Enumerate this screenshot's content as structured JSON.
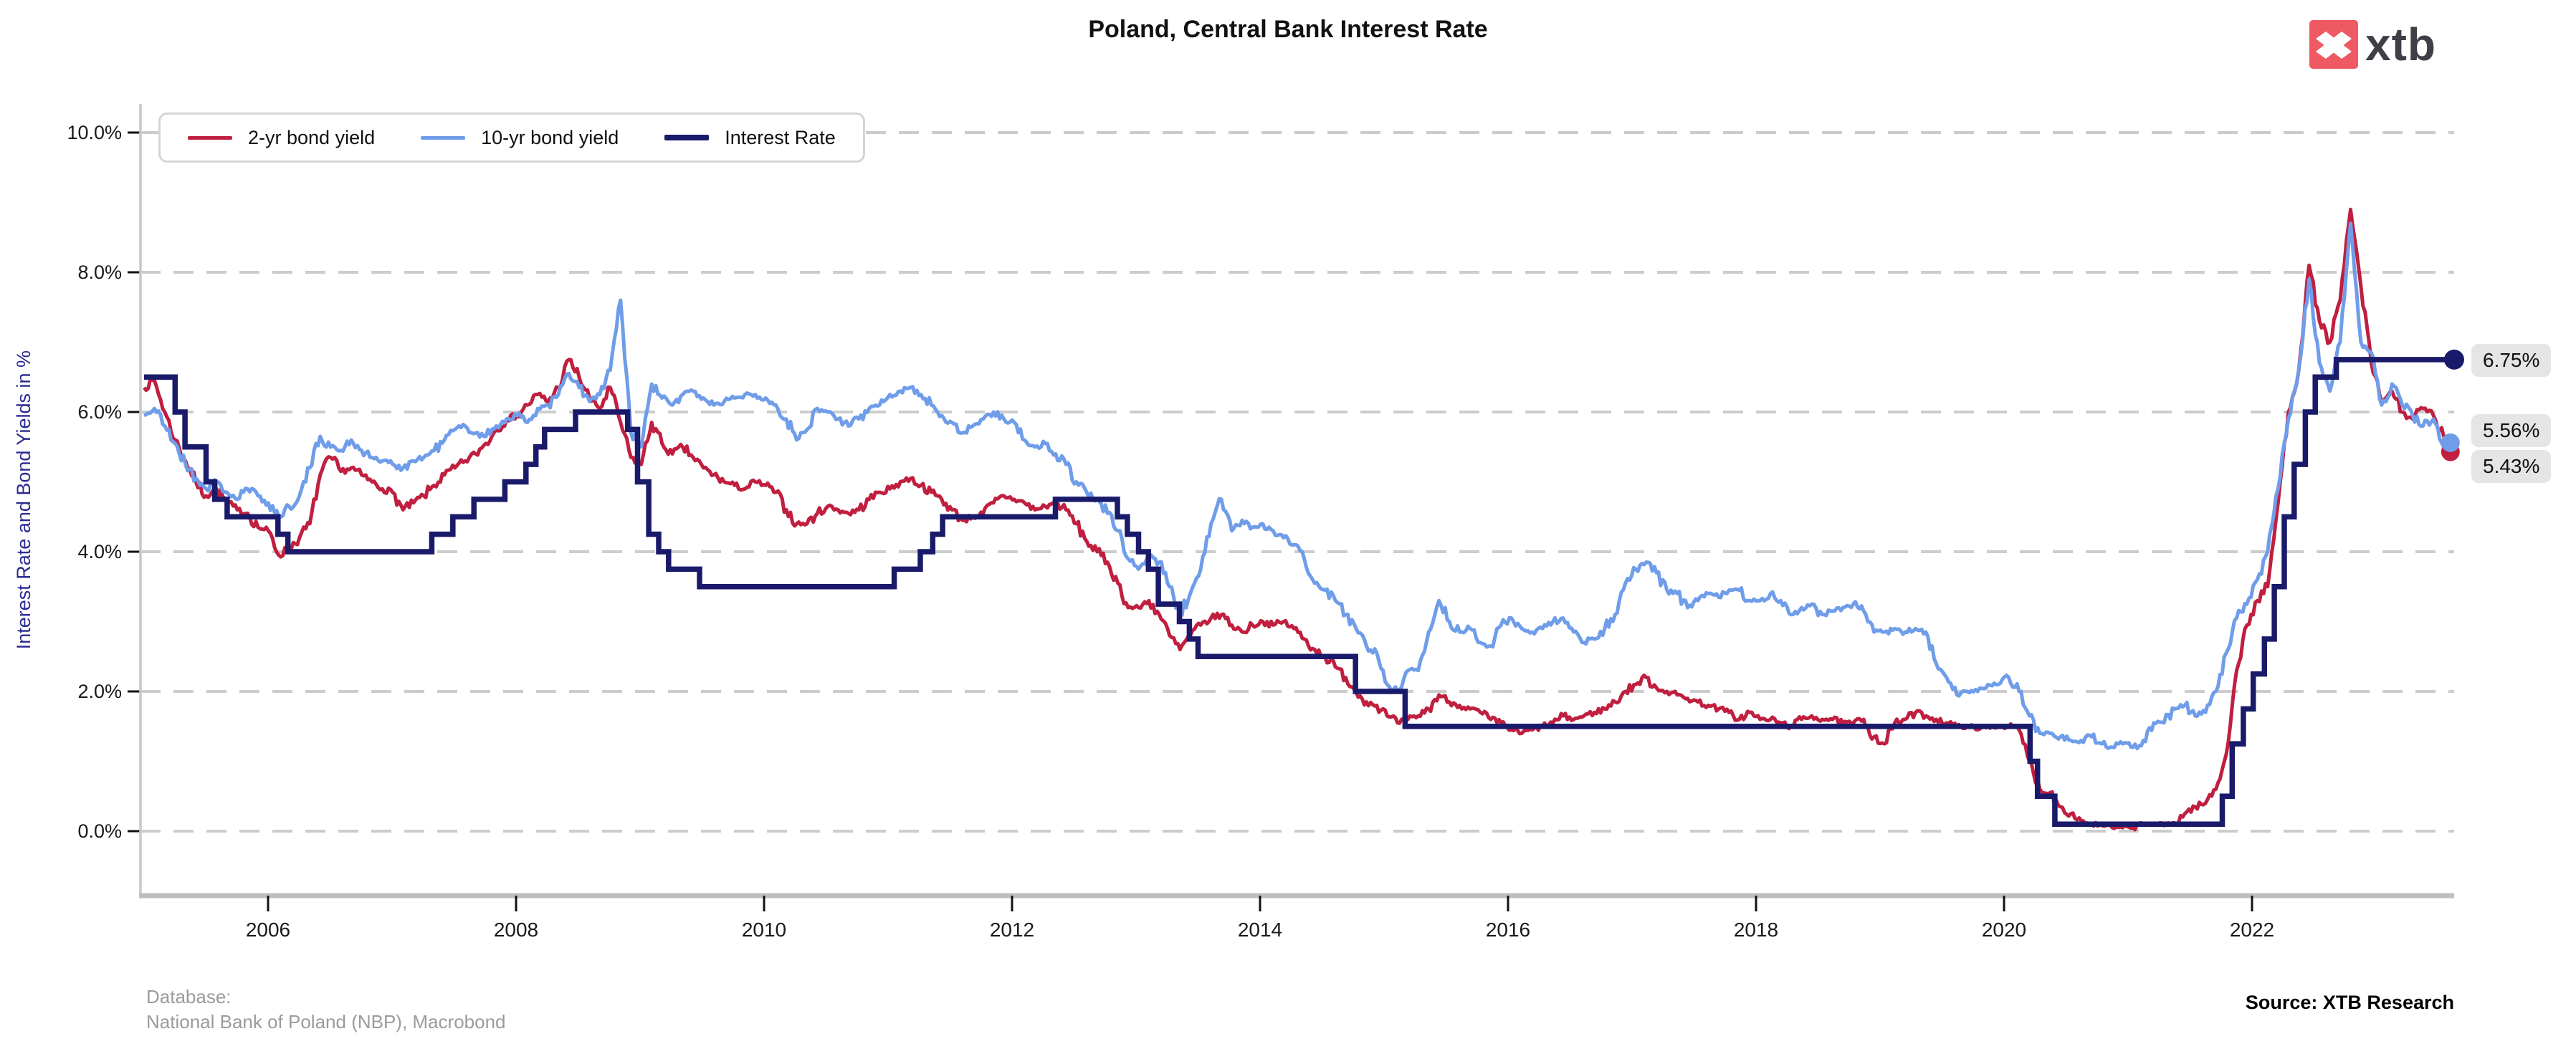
{
  "logo": {
    "text": "xtb",
    "square_color": "#EF5964",
    "text_color": "#3F3F48"
  },
  "footer": {
    "database_label": "Database:",
    "database_value": "National Bank of Poland (NBP), Macrobond",
    "source": "Source: XTB Research"
  },
  "colors": {
    "two_year": "#C01F3F",
    "ten_year": "#6F9DE9",
    "interest_rate": "#1A1A6B",
    "gridline": "#CCCCCC",
    "left_spine": "#C9C9C9",
    "bottom_spine": "#BEBEBE",
    "axis_title": "#2A2A93",
    "end_label_bg": "#E5E5E5"
  },
  "chart_data": {
    "type": "line",
    "title": "Poland, Central Bank Interest Rate",
    "xlabel": "",
    "ylabel": "Interest Rate and Bond Yields in %",
    "ylim": [
      0,
      10
    ],
    "x_range_years": [
      2005,
      2023.63
    ],
    "grid": "horizontal dashed",
    "legend_position": "top-left",
    "x_ticks": [
      "2006",
      "2008",
      "2010",
      "2012",
      "2014",
      "2016",
      "2018",
      "2020",
      "2022"
    ],
    "x_tick_years": [
      2006,
      2008,
      2010,
      2012,
      2014,
      2016,
      2018,
      2020,
      2022
    ],
    "y_ticks": {
      "values": [
        0,
        2,
        4,
        6,
        8,
        10
      ],
      "labels": [
        "0.0%",
        "2.0%",
        "4.0%",
        "6.0%",
        "8.0%",
        "10.0%"
      ]
    },
    "series": [
      {
        "name": "2-yr bond yield",
        "type": "line",
        "color": "#C01F3F",
        "interval": "monthly",
        "start": "2005-01",
        "end": "2023-08",
        "end_label": "5.43%",
        "values": [
          6.35,
          6.45,
          6.0,
          5.6,
          5.3,
          5.0,
          4.8,
          4.9,
          4.7,
          4.6,
          4.55,
          4.35,
          4.3,
          3.95,
          4.05,
          4.2,
          4.4,
          5.1,
          5.35,
          5.15,
          5.2,
          5.1,
          5.0,
          4.9,
          4.85,
          4.6,
          4.7,
          4.8,
          4.95,
          5.1,
          5.2,
          5.3,
          5.4,
          5.55,
          5.75,
          5.9,
          5.95,
          6.1,
          6.25,
          6.15,
          6.35,
          6.75,
          6.5,
          6.2,
          6.05,
          6.35,
          5.85,
          5.35,
          5.25,
          5.85,
          5.55,
          5.4,
          5.5,
          5.35,
          5.2,
          5.1,
          5.0,
          4.95,
          4.9,
          5.0,
          4.95,
          4.85,
          4.6,
          4.4,
          4.4,
          4.55,
          4.65,
          4.6,
          4.55,
          4.6,
          4.75,
          4.85,
          4.9,
          5.0,
          5.05,
          4.95,
          4.85,
          4.75,
          4.6,
          4.45,
          4.5,
          4.55,
          4.7,
          4.8,
          4.75,
          4.7,
          4.6,
          4.65,
          4.7,
          4.6,
          4.4,
          4.15,
          4.0,
          3.85,
          3.55,
          3.2,
          3.2,
          3.3,
          3.1,
          2.8,
          2.6,
          2.8,
          2.95,
          3.05,
          3.1,
          2.95,
          2.85,
          2.95,
          3.0,
          2.95,
          3.0,
          2.9,
          2.75,
          2.6,
          2.5,
          2.35,
          2.2,
          2.0,
          1.85,
          1.8,
          1.65,
          1.55,
          1.6,
          1.65,
          1.75,
          1.95,
          1.85,
          1.8,
          1.75,
          1.7,
          1.6,
          1.55,
          1.45,
          1.4,
          1.45,
          1.5,
          1.55,
          1.65,
          1.6,
          1.65,
          1.7,
          1.75,
          1.85,
          2.0,
          2.1,
          2.2,
          2.05,
          2.0,
          1.95,
          1.9,
          1.85,
          1.8,
          1.75,
          1.7,
          1.6,
          1.7,
          1.6,
          1.6,
          1.55,
          1.5,
          1.6,
          1.65,
          1.6,
          1.6,
          1.55,
          1.55,
          1.6,
          1.35,
          1.25,
          1.55,
          1.6,
          1.7,
          1.65,
          1.6,
          1.55,
          1.5,
          1.5,
          1.45,
          1.5,
          1.5,
          1.5,
          1.45,
          1.0,
          0.6,
          0.55,
          0.35,
          0.25,
          0.15,
          0.1,
          0.08,
          0.05,
          0.05,
          0.05,
          0.1,
          0.1,
          0.08,
          0.12,
          0.25,
          0.35,
          0.4,
          0.6,
          1.1,
          2.3,
          2.95,
          3.3,
          3.5,
          4.7,
          6.0,
          6.6,
          8.1,
          7.3,
          7.0,
          7.6,
          8.9,
          7.8,
          6.7,
          6.15,
          6.3,
          6.0,
          5.9,
          6.05,
          5.95,
          5.65,
          5.43
        ]
      },
      {
        "name": "10-yr bond yield",
        "type": "line",
        "color": "#6F9DE9",
        "interval": "monthly",
        "start": "2005-01",
        "end": "2023-08",
        "end_label": "5.56%",
        "values": [
          5.95,
          6.05,
          5.8,
          5.55,
          5.25,
          5.05,
          4.9,
          5.0,
          4.85,
          4.75,
          4.9,
          4.8,
          4.7,
          4.5,
          4.65,
          4.8,
          5.2,
          5.65,
          5.5,
          5.45,
          5.6,
          5.45,
          5.35,
          5.3,
          5.25,
          5.2,
          5.3,
          5.35,
          5.45,
          5.6,
          5.75,
          5.8,
          5.7,
          5.65,
          5.8,
          5.9,
          5.95,
          5.85,
          6.05,
          6.1,
          6.25,
          6.55,
          6.35,
          6.15,
          6.25,
          6.6,
          7.6,
          5.7,
          5.5,
          6.4,
          6.2,
          6.1,
          6.25,
          6.3,
          6.2,
          6.1,
          6.15,
          6.2,
          6.25,
          6.25,
          6.2,
          6.1,
          5.9,
          5.6,
          5.75,
          6.05,
          6.0,
          5.9,
          5.8,
          5.9,
          6.05,
          6.1,
          6.25,
          6.3,
          6.35,
          6.25,
          6.1,
          5.95,
          5.85,
          5.7,
          5.8,
          5.9,
          6.0,
          5.9,
          5.85,
          5.6,
          5.5,
          5.55,
          5.4,
          5.25,
          5.0,
          4.85,
          4.75,
          4.55,
          4.3,
          3.9,
          3.75,
          3.95,
          3.85,
          3.5,
          3.1,
          3.4,
          3.75,
          4.4,
          4.75,
          4.3,
          4.45,
          4.35,
          4.4,
          4.3,
          4.2,
          4.1,
          3.9,
          3.55,
          3.45,
          3.3,
          3.1,
          2.9,
          2.65,
          2.55,
          2.1,
          2.0,
          2.3,
          2.3,
          2.85,
          3.3,
          3.0,
          2.85,
          2.9,
          2.7,
          2.65,
          2.95,
          3.05,
          2.9,
          2.85,
          2.9,
          3.0,
          3.05,
          2.85,
          2.7,
          2.75,
          2.9,
          3.1,
          3.55,
          3.75,
          3.85,
          3.7,
          3.45,
          3.4,
          3.2,
          3.3,
          3.4,
          3.35,
          3.45,
          3.45,
          3.3,
          3.3,
          3.4,
          3.3,
          3.1,
          3.2,
          3.25,
          3.1,
          3.15,
          3.2,
          3.25,
          3.15,
          2.85,
          2.85,
          2.9,
          2.85,
          2.9,
          2.85,
          2.4,
          2.2,
          1.95,
          2.0,
          2.0,
          2.1,
          2.1,
          2.2,
          2.0,
          1.65,
          1.4,
          1.4,
          1.35,
          1.3,
          1.3,
          1.35,
          1.25,
          1.2,
          1.25,
          1.2,
          1.3,
          1.55,
          1.55,
          1.75,
          1.8,
          1.65,
          1.7,
          2.0,
          2.55,
          3.05,
          3.25,
          3.6,
          4.0,
          4.9,
          5.9,
          6.6,
          7.9,
          6.7,
          6.3,
          7.0,
          8.7,
          7.0,
          6.85,
          6.1,
          6.4,
          6.1,
          5.95,
          5.8,
          5.9,
          5.5,
          5.56
        ]
      },
      {
        "name": "Interest Rate",
        "type": "step",
        "color": "#1A1A6B",
        "end_label": "6.75%",
        "end_year": 2023.63,
        "steps": [
          [
            2005.0,
            6.5
          ],
          [
            2005.25,
            6.0
          ],
          [
            2005.33,
            5.5
          ],
          [
            2005.5,
            5.0
          ],
          [
            2005.57,
            4.75
          ],
          [
            2005.67,
            4.5
          ],
          [
            2006.08,
            4.25
          ],
          [
            2006.16,
            4.0
          ],
          [
            2007.32,
            4.25
          ],
          [
            2007.49,
            4.5
          ],
          [
            2007.66,
            4.75
          ],
          [
            2007.91,
            5.0
          ],
          [
            2008.08,
            5.25
          ],
          [
            2008.16,
            5.5
          ],
          [
            2008.23,
            5.75
          ],
          [
            2008.48,
            6.0
          ],
          [
            2008.9,
            5.75
          ],
          [
            2008.98,
            5.0
          ],
          [
            2009.07,
            4.25
          ],
          [
            2009.15,
            4.0
          ],
          [
            2009.23,
            3.75
          ],
          [
            2009.48,
            3.5
          ],
          [
            2011.05,
            3.75
          ],
          [
            2011.26,
            4.0
          ],
          [
            2011.36,
            4.25
          ],
          [
            2011.44,
            4.5
          ],
          [
            2012.35,
            4.75
          ],
          [
            2012.85,
            4.5
          ],
          [
            2012.93,
            4.25
          ],
          [
            2013.02,
            4.0
          ],
          [
            2013.1,
            3.75
          ],
          [
            2013.18,
            3.25
          ],
          [
            2013.35,
            3.0
          ],
          [
            2013.43,
            2.75
          ],
          [
            2013.5,
            2.5
          ],
          [
            2014.77,
            2.0
          ],
          [
            2015.17,
            1.5
          ],
          [
            2020.21,
            1.0
          ],
          [
            2020.27,
            0.5
          ],
          [
            2020.41,
            0.1
          ],
          [
            2021.76,
            0.5
          ],
          [
            2021.84,
            1.25
          ],
          [
            2021.93,
            1.75
          ],
          [
            2022.01,
            2.25
          ],
          [
            2022.1,
            2.75
          ],
          [
            2022.18,
            3.5
          ],
          [
            2022.26,
            4.5
          ],
          [
            2022.34,
            5.25
          ],
          [
            2022.43,
            6.0
          ],
          [
            2022.51,
            6.5
          ],
          [
            2022.68,
            6.75
          ]
        ]
      }
    ],
    "annotations": [
      {
        "text": "6.75%",
        "value": 6.75,
        "series": "Interest Rate"
      },
      {
        "text": "5.56%",
        "value": 5.56,
        "series": "10-yr bond yield"
      },
      {
        "text": "5.43%",
        "value": 5.43,
        "series": "2-yr bond yield"
      }
    ]
  }
}
